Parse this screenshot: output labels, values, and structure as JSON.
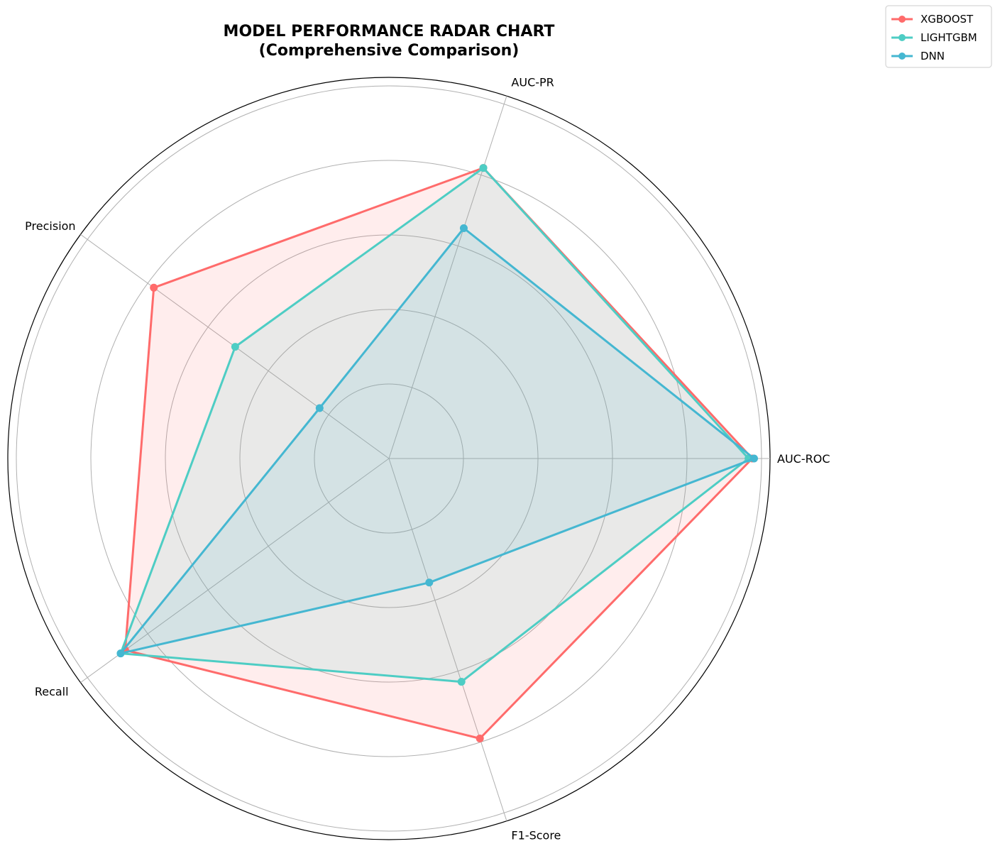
{
  "chart_data": {
    "type": "radar",
    "title": "MODEL PERFORMANCE RADAR CHART",
    "subtitle": "(Comprehensive Comparison)",
    "categories": [
      "AUC-ROC",
      "AUC-PR",
      "Precision",
      "Recall",
      "F1-Score"
    ],
    "rlim": [
      0,
      1.0
    ],
    "rgrid": [
      0.2,
      0.4,
      0.6,
      0.8,
      1.0
    ],
    "grid": true,
    "legend_position": "top-right",
    "series": [
      {
        "name": "XGBOOST",
        "color": "#ff6b6b",
        "fill": true,
        "values": [
          0.975,
          0.82,
          0.78,
          0.875,
          0.79
        ]
      },
      {
        "name": "LIGHTGBM",
        "color": "#4ecdc4",
        "fill": true,
        "values": [
          0.965,
          0.82,
          0.51,
          0.89,
          0.63
        ]
      },
      {
        "name": "DNN",
        "color": "#45b7d1",
        "fill": true,
        "values": [
          0.98,
          0.65,
          0.23,
          0.89,
          0.35
        ]
      }
    ]
  }
}
